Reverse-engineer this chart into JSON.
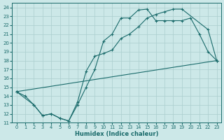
{
  "xlabel": "Humidex (Indice chaleur)",
  "bg_color": "#cce8e8",
  "line_color": "#1a6b6b",
  "grid_color": "#aacece",
  "xlim": [
    -0.5,
    23.5
  ],
  "ylim": [
    11,
    24.5
  ],
  "xticks": [
    0,
    1,
    2,
    3,
    4,
    5,
    6,
    7,
    8,
    9,
    10,
    11,
    12,
    13,
    14,
    15,
    16,
    17,
    18,
    19,
    20,
    21,
    22,
    23
  ],
  "yticks": [
    11,
    12,
    13,
    14,
    15,
    16,
    17,
    18,
    19,
    20,
    21,
    22,
    23,
    24
  ],
  "line1_x": [
    0,
    1,
    2,
    3,
    4,
    5,
    6,
    7,
    8,
    9,
    10,
    11,
    12,
    13,
    14,
    15,
    16,
    17,
    18,
    19,
    20,
    21,
    22,
    23
  ],
  "line1_y": [
    14.5,
    14.0,
    13.0,
    11.8,
    12.0,
    11.5,
    11.2,
    13.0,
    15.0,
    17.0,
    20.2,
    21.0,
    22.8,
    22.8,
    23.7,
    23.8,
    22.5,
    22.5,
    22.5,
    22.5,
    22.8,
    21.0,
    19.0,
    18.0
  ],
  "line2_x": [
    0,
    2,
    3,
    4,
    5,
    6,
    7,
    8,
    9,
    10,
    11,
    12,
    13,
    14,
    15,
    16,
    17,
    18,
    19,
    22,
    23
  ],
  "line2_y": [
    14.5,
    13.0,
    11.8,
    12.0,
    11.5,
    11.2,
    13.3,
    16.8,
    18.5,
    18.8,
    19.2,
    20.5,
    21.0,
    21.8,
    22.8,
    23.2,
    23.5,
    23.8,
    23.8,
    21.5,
    18.0
  ],
  "line3_x": [
    0,
    23
  ],
  "line3_y": [
    14.5,
    18.0
  ]
}
